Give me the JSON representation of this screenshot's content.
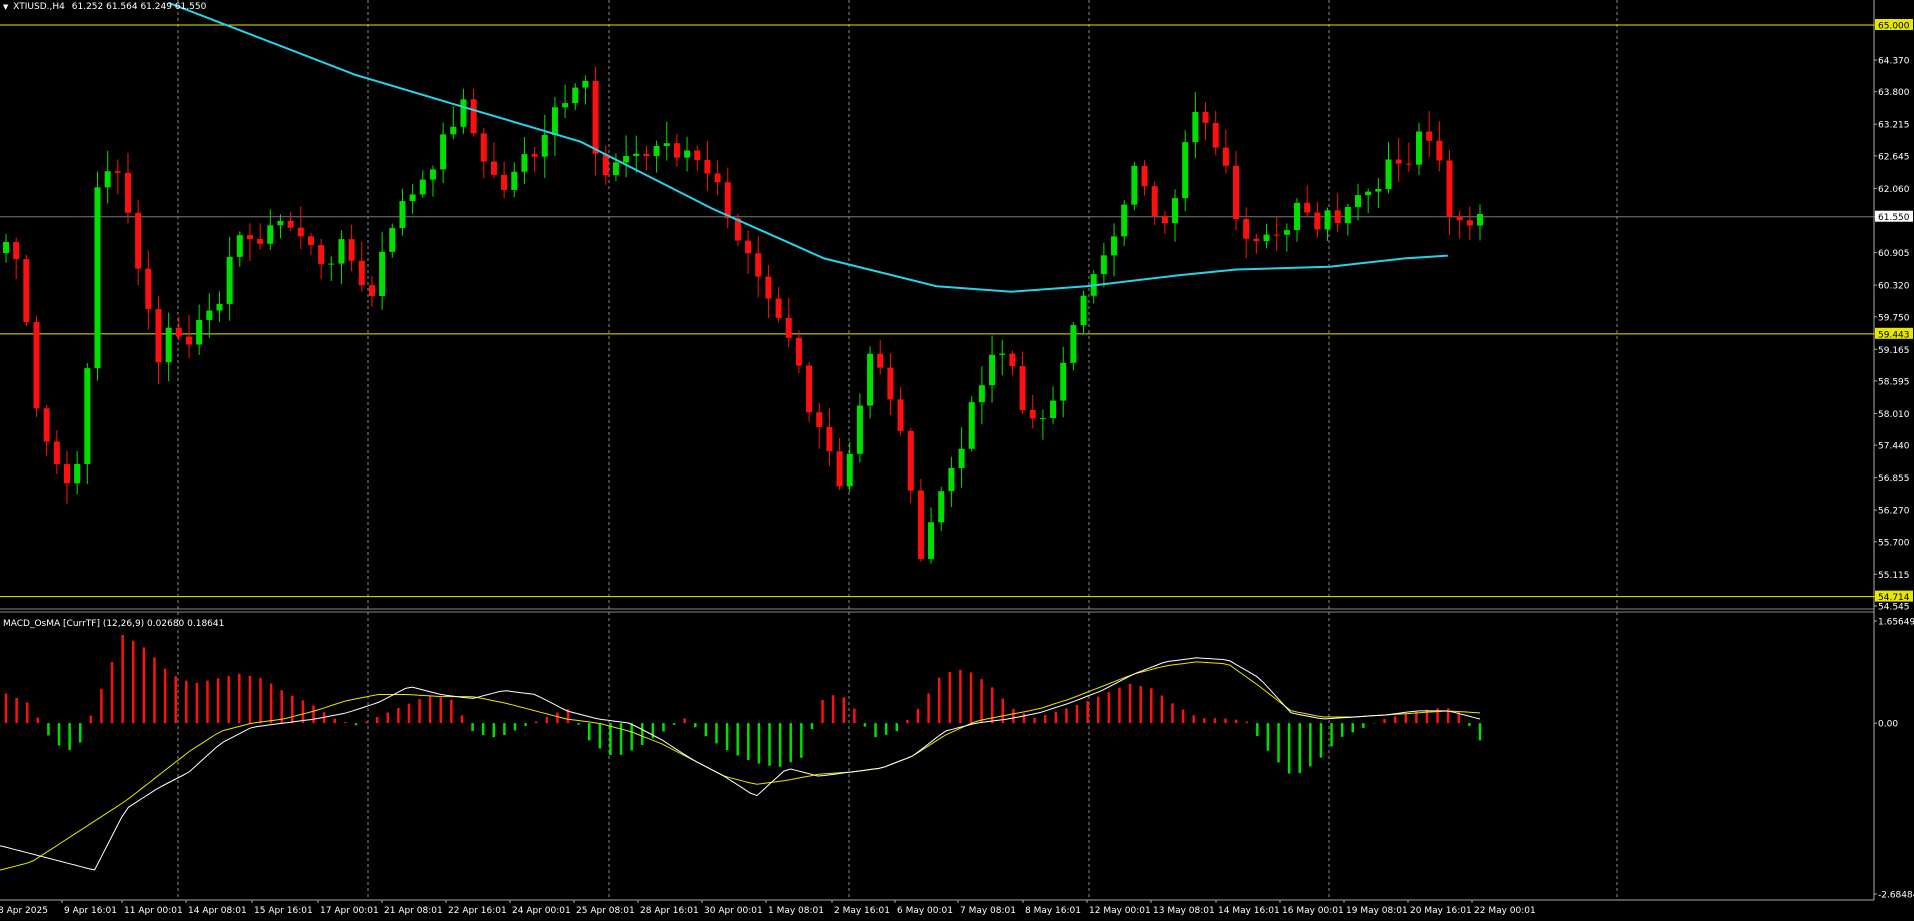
{
  "header": {
    "symbol_label": "XTIUSD.,H4",
    "ohlc": "61.252 61.564 61.249 61.550",
    "menu_icon": "triangle-down-icon"
  },
  "indicator": {
    "label": "MACD_OsMA [CurrTF] (12,26,9) 0.02680 0.18641"
  },
  "colors": {
    "background": "#000000",
    "bull": "#00e000",
    "bear": "#ff1010",
    "ma": "#27d3e8",
    "hline": "#e6e600",
    "macd_line": "#ffffff",
    "signal_line": "#e6e600",
    "grid": "#c8c8c8"
  },
  "price_axis": {
    "labels": [
      "65.000",
      "64.370",
      "63.800",
      "63.215",
      "62.645",
      "62.060",
      "61.550",
      "60.905",
      "60.320",
      "59.750",
      "59.443",
      "59.165",
      "58.595",
      "58.010",
      "57.440",
      "56.855",
      "56.270",
      "55.700",
      "55.115",
      "54.714",
      "54.545"
    ],
    "highlighted": [
      "65.000",
      "59.443",
      "54.714"
    ],
    "current": "61.550"
  },
  "indicator_axis": {
    "labels": [
      "1.65649",
      "0.00",
      "-2.68484"
    ]
  },
  "time_axis": {
    "labels": [
      "8 Apr 2025",
      "9 Apr 16:01",
      "11 Apr 00:01",
      "14 Apr 08:01",
      "15 Apr 16:01",
      "17 Apr 00:01",
      "21 Apr 08:01",
      "22 Apr 16:01",
      "24 Apr 00:01",
      "25 Apr 08:01",
      "28 Apr 16:01",
      "30 Apr 00:01",
      "1 May 08:01",
      "2 May 16:01",
      "6 May 00:01",
      "7 May 08:01",
      "8 May 16:01",
      "12 May 00:01",
      "13 May 08:01",
      "14 May 16:01",
      "16 May 00:01",
      "19 May 08:01",
      "20 May 16:01",
      "22 May 00:01"
    ]
  },
  "chart_data": {
    "type": "candlestick",
    "symbol": "XTIUSD.",
    "timeframe": "H4",
    "ylim": [
      54.545,
      65.45
    ],
    "horizontal_lines": [
      65.0,
      59.443,
      54.714
    ],
    "close_path": [
      61.1,
      60.6,
      58.2,
      57.2,
      56.9,
      57.0,
      62.1,
      62.6,
      61.6,
      60.4,
      59.0,
      59.7,
      59.2,
      59.9,
      60.1,
      60.9,
      61.3,
      61.0,
      61.6,
      61.3,
      61.0,
      60.7,
      61.0,
      60.7,
      60.0,
      61.3,
      61.7,
      62.1,
      62.5,
      63.0,
      63.6,
      62.9,
      62.3,
      62.0,
      62.6,
      62.8,
      63.5,
      63.8,
      64.3,
      62.2,
      62.3,
      62.8,
      62.6,
      62.9,
      62.6,
      62.8,
      62.5,
      62.0,
      61.3,
      60.7,
      60.0,
      59.5,
      59.0,
      57.8,
      57.7,
      56.6,
      58.0,
      59.3,
      58.3,
      57.7,
      55.4,
      56.2,
      56.9,
      57.6,
      58.4,
      59.0,
      59.1,
      58.1,
      57.6,
      58.4,
      59.6,
      60.1,
      60.7,
      61.1,
      62.4,
      62.2,
      61.4,
      62.1,
      63.4,
      63.1,
      62.8,
      61.6,
      61.0,
      61.4,
      61.2,
      61.9,
      61.3,
      61.8,
      61.5,
      62.1,
      62.0,
      62.6,
      62.5,
      63.0,
      62.9,
      61.6,
      61.2,
      61.55
    ],
    "ma_curve": [
      [
        0.09,
        65.4
      ],
      [
        0.19,
        64.1
      ],
      [
        0.25,
        63.5
      ],
      [
        0.31,
        62.9
      ],
      [
        0.38,
        61.7
      ],
      [
        0.44,
        60.8
      ],
      [
        0.5,
        60.3
      ],
      [
        0.54,
        60.2
      ],
      [
        0.58,
        60.3
      ],
      [
        0.63,
        60.5
      ],
      [
        0.66,
        60.6
      ],
      [
        0.71,
        60.65
      ],
      [
        0.75,
        60.8
      ],
      [
        0.773,
        60.85
      ]
    ],
    "histogram_path": [
      0.6,
      0.4,
      -0.4,
      -0.6,
      0.6,
      1.8,
      1.5,
      1.0,
      0.8,
      0.9,
      1.0,
      0.9,
      0.6,
      0.4,
      0.1,
      -0.05,
      0.15,
      0.35,
      0.55,
      0.5,
      -0.2,
      -0.3,
      -0.1,
      0.1,
      0.3,
      -0.4,
      -0.7,
      -0.5,
      -0.2,
      0.1,
      -0.3,
      -0.6,
      -0.8,
      -0.9,
      -0.7,
      0.6,
      0.5,
      -0.3,
      -0.2,
      0.3,
      1.0,
      1.1,
      0.8,
      0.3,
      0.1,
      0.25,
      0.4,
      0.6,
      0.8,
      0.7,
      0.35,
      0.1,
      0.1,
      0.05,
      -0.6,
      -1.1,
      -0.8,
      -0.3,
      -0.1,
      0.1,
      0.2,
      0.3,
      0.3,
      -0.35
    ],
    "macd_line_path": [
      -3.0,
      -3.2,
      -3.4,
      -3.6,
      -2.1,
      -1.6,
      -1.2,
      -0.5,
      -0.1,
      0.0,
      0.1,
      0.25,
      0.5,
      0.9,
      0.7,
      0.6,
      0.8,
      0.7,
      0.3,
      0.1,
      0.0,
      -0.4,
      -0.9,
      -1.3,
      -1.8,
      -1.1,
      -1.3,
      -1.2,
      -1.1,
      -0.8,
      -0.2,
      0.0,
      0.1,
      0.25,
      0.5,
      0.8,
      1.2,
      1.5,
      1.6,
      1.55,
      1.1,
      0.25,
      0.1,
      0.15,
      0.2,
      0.3,
      0.3,
      0.1
    ],
    "signal_line_path": [
      -3.6,
      -3.4,
      -2.9,
      -2.4,
      -1.9,
      -1.3,
      -0.7,
      -0.2,
      0.0,
      0.1,
      0.3,
      0.55,
      0.7,
      0.7,
      0.65,
      0.65,
      0.5,
      0.3,
      0.1,
      0.0,
      -0.2,
      -0.5,
      -0.9,
      -1.3,
      -1.5,
      -1.4,
      -1.25,
      -1.2,
      -1.1,
      -0.8,
      -0.3,
      0.05,
      0.2,
      0.35,
      0.6,
      0.9,
      1.2,
      1.4,
      1.5,
      1.45,
      0.9,
      0.3,
      0.15,
      0.15,
      0.2,
      0.25,
      0.3,
      0.25
    ],
    "indicator_ylim": [
      -2.68484,
      1.65649
    ]
  }
}
